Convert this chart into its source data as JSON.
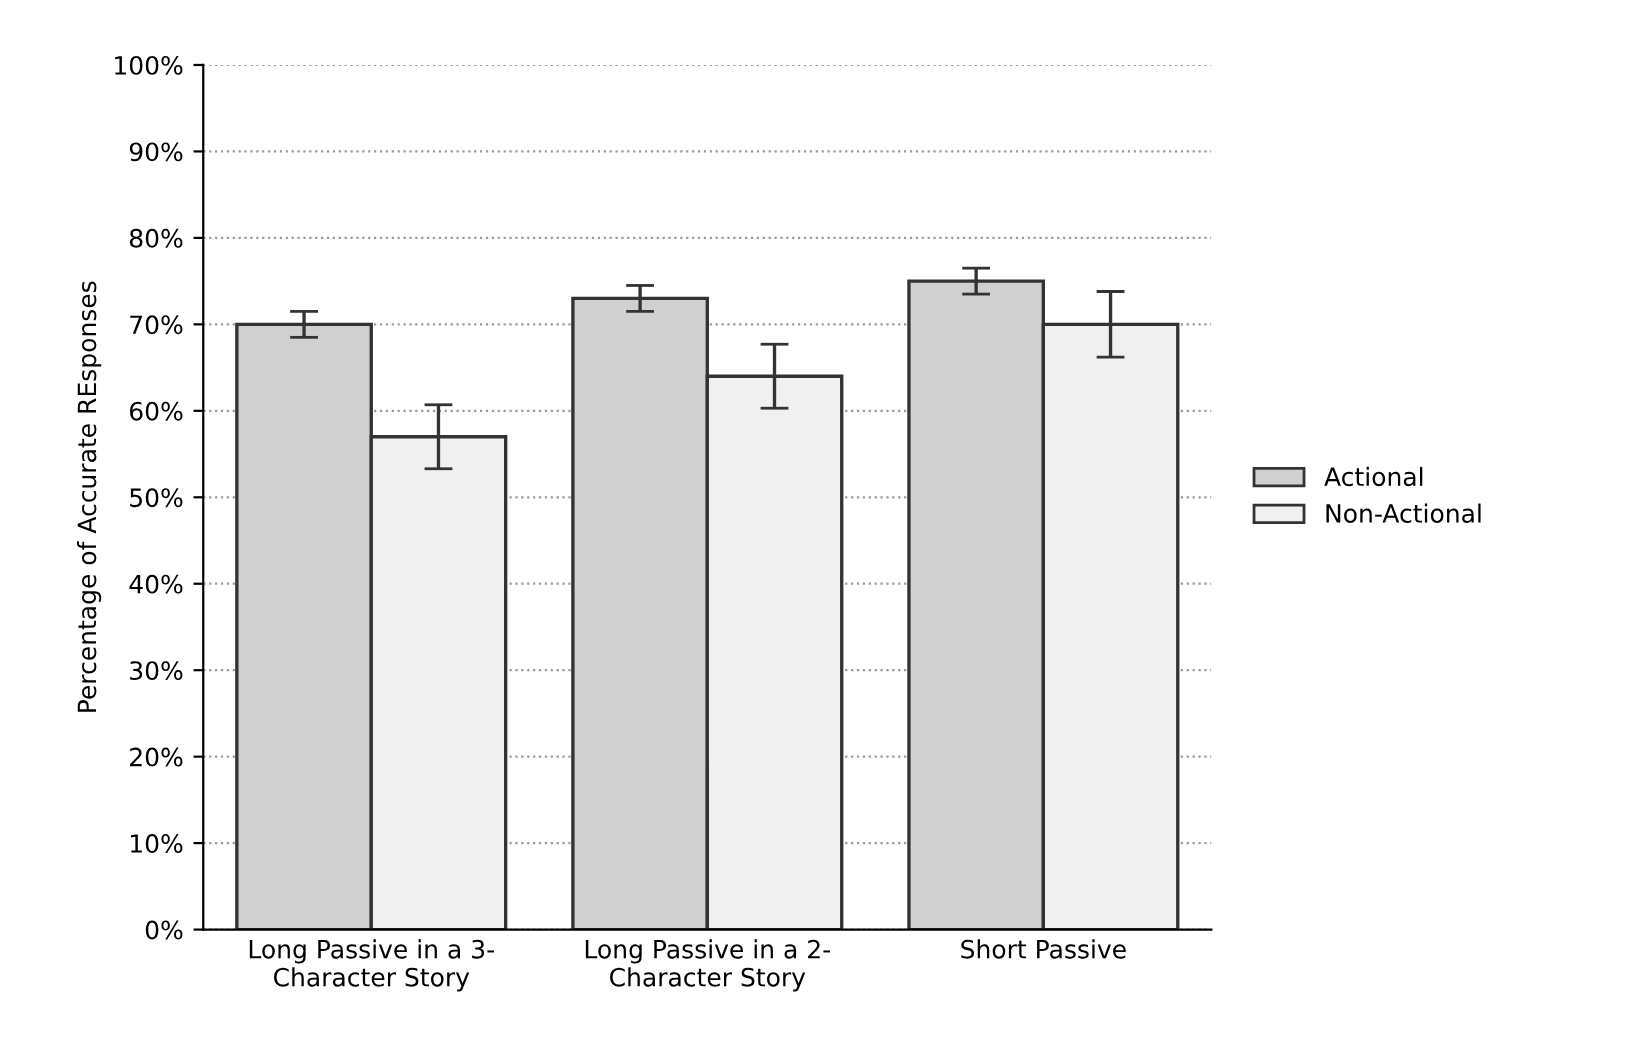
{
  "chart_data": {
    "type": "bar",
    "ylabel": "Percentage of Accurate REsponses",
    "categories": [
      "Long Passive in a 3-Character Story",
      "Long Passive in a 2-Character Story",
      "Short Passive"
    ],
    "series": [
      {
        "name": "Actional",
        "color": "#d0d0d0",
        "values": [
          70,
          73,
          75
        ],
        "errors": [
          1.5,
          1.5,
          1.5
        ]
      },
      {
        "name": "Non-Actional",
        "color": "#f0f0f0",
        "values": [
          57,
          64,
          70
        ],
        "errors": [
          3.7,
          3.7,
          3.8
        ]
      }
    ],
    "ylim": [
      0,
      100
    ],
    "yticks": [
      {
        "value": 0,
        "label": "0%"
      },
      {
        "value": 10,
        "label": "10%"
      },
      {
        "value": 20,
        "label": "20%"
      },
      {
        "value": 30,
        "label": "30%"
      },
      {
        "value": 40,
        "label": "40%"
      },
      {
        "value": 50,
        "label": "50%"
      },
      {
        "value": 60,
        "label": "60%"
      },
      {
        "value": 70,
        "label": "70%"
      },
      {
        "value": 80,
        "label": "80%"
      },
      {
        "value": 90,
        "label": "90%"
      },
      {
        "value": 100,
        "label": "100%"
      }
    ],
    "grid": "y",
    "legend": "right"
  }
}
